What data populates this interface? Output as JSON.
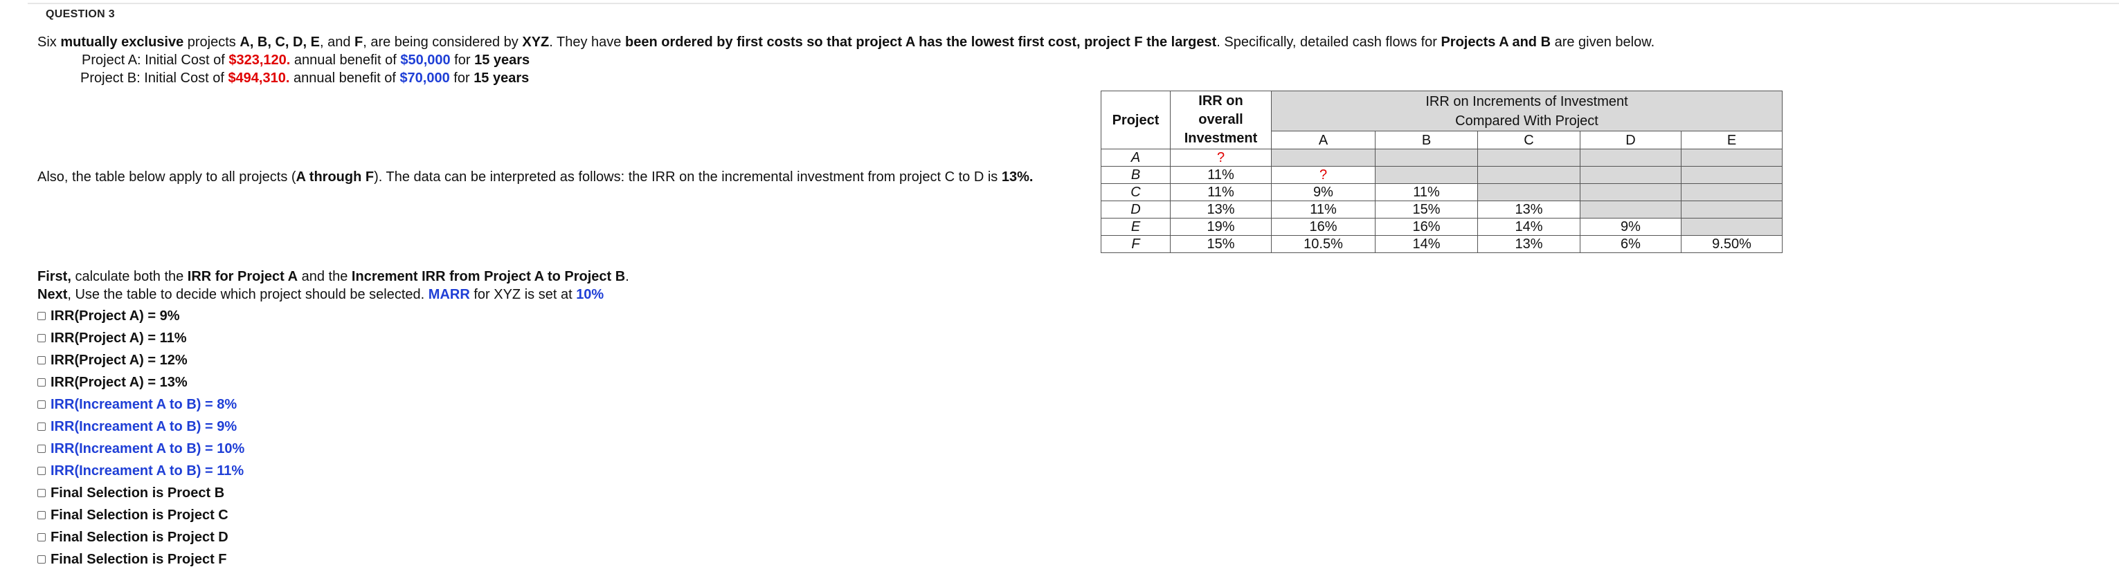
{
  "question_title": "QUESTION 3",
  "intro": {
    "t1": "Six ",
    "t2": "mutually exclusive",
    "t3": " projects ",
    "t4": "A, B, C, D, E",
    "t5": ", and ",
    "t6": "F",
    "t7": ", are being considered by ",
    "t8": "XYZ",
    "t9": ". They have ",
    "t10": "been ordered by first costs so that project A has the lowest first cost, project F the largest",
    "t11": ".  Specifically, detailed cash flows for ",
    "t12": "Projects A and B",
    "t13": " are given below."
  },
  "project_a": {
    "name": "Project A",
    "cost_label": ": Initial Cost of ",
    "cost": "$323,120.",
    "benefit_label": "  annual benefit of ",
    "benefit": "$50,000",
    "for": " for ",
    "years": "15 years"
  },
  "project_b": {
    "name": "Project B",
    "cost_label": ": Initial Cost of ",
    "cost": "$494,310.",
    "benefit_label": "  annual benefit of ",
    "benefit": "$70,000",
    "for": " for ",
    "years": "15 years"
  },
  "also": {
    "t1": "Also, the table below apply to all projects (",
    "t2": "A through F",
    "t3": "). The data can be interpreted as follows: the IRR on the incremental investment from project C to D is ",
    "t4": "13%."
  },
  "table": {
    "header_project": "Project",
    "header_overall_1": "IRR on",
    "header_overall_2": "overall",
    "header_overall_3": "Investment",
    "header_incr_1": "IRR on Increments of Investment",
    "header_incr_2": "Compared With Project",
    "cols": [
      "A",
      "B",
      "C",
      "D",
      "E"
    ],
    "rows": [
      {
        "project": "A",
        "overall": "?",
        "inc": [
          "",
          "",
          "",
          "",
          ""
        ]
      },
      {
        "project": "B",
        "overall": "11%",
        "inc": [
          "?",
          "",
          "",
          "",
          ""
        ]
      },
      {
        "project": "C",
        "overall": "11%",
        "inc": [
          "9%",
          "11%",
          "",
          "",
          ""
        ]
      },
      {
        "project": "D",
        "overall": "13%",
        "inc": [
          "11%",
          "15%",
          "13%",
          "",
          ""
        ]
      },
      {
        "project": "E",
        "overall": "19%",
        "inc": [
          "16%",
          "16%",
          "14%",
          "9%",
          ""
        ]
      },
      {
        "project": "F",
        "overall": "15%",
        "inc": [
          "10.5%",
          "14%",
          "13%",
          "6%",
          "9.50%"
        ]
      }
    ]
  },
  "first": {
    "t1": "First,",
    "t2": " calculate both the ",
    "t3": "IRR for Project A",
    "t4": " and the ",
    "t5": "Increment IRR from Project A to Project B",
    "t6": "."
  },
  "next": {
    "t1": "Next",
    "t2": ", Use the table to decide which project should be selected.  ",
    "t3": "MARR",
    "t4": " for XYZ is set at ",
    "t5": "10%"
  },
  "options": [
    {
      "label": "IRR(Project A) = 9%",
      "color": "black"
    },
    {
      "label": "IRR(Project A) = 11%",
      "color": "black"
    },
    {
      "label": "IRR(Project A) = 12%",
      "color": "black"
    },
    {
      "label": "IRR(Project A) = 13%",
      "color": "black"
    },
    {
      "label": "IRR(Increament A to B) = 8%",
      "color": "blue"
    },
    {
      "label": "IRR(Increament A to B) = 9%",
      "color": "blue"
    },
    {
      "label": "IRR(Increament A to B) = 10%",
      "color": "blue"
    },
    {
      "label": "IRR(Increament A to B) = 11%",
      "color": "blue"
    },
    {
      "label": "Final Selection is Proect B",
      "color": "black"
    },
    {
      "label": "Final Selection is Project C",
      "color": "black"
    },
    {
      "label": "Final Selection is Project D",
      "color": "black"
    },
    {
      "label": "Final Selection is Project F",
      "color": "black"
    }
  ],
  "colors": {
    "red": "#e00000",
    "blue": "#1f3fd6",
    "grey_cell": "#d9d9d9"
  }
}
